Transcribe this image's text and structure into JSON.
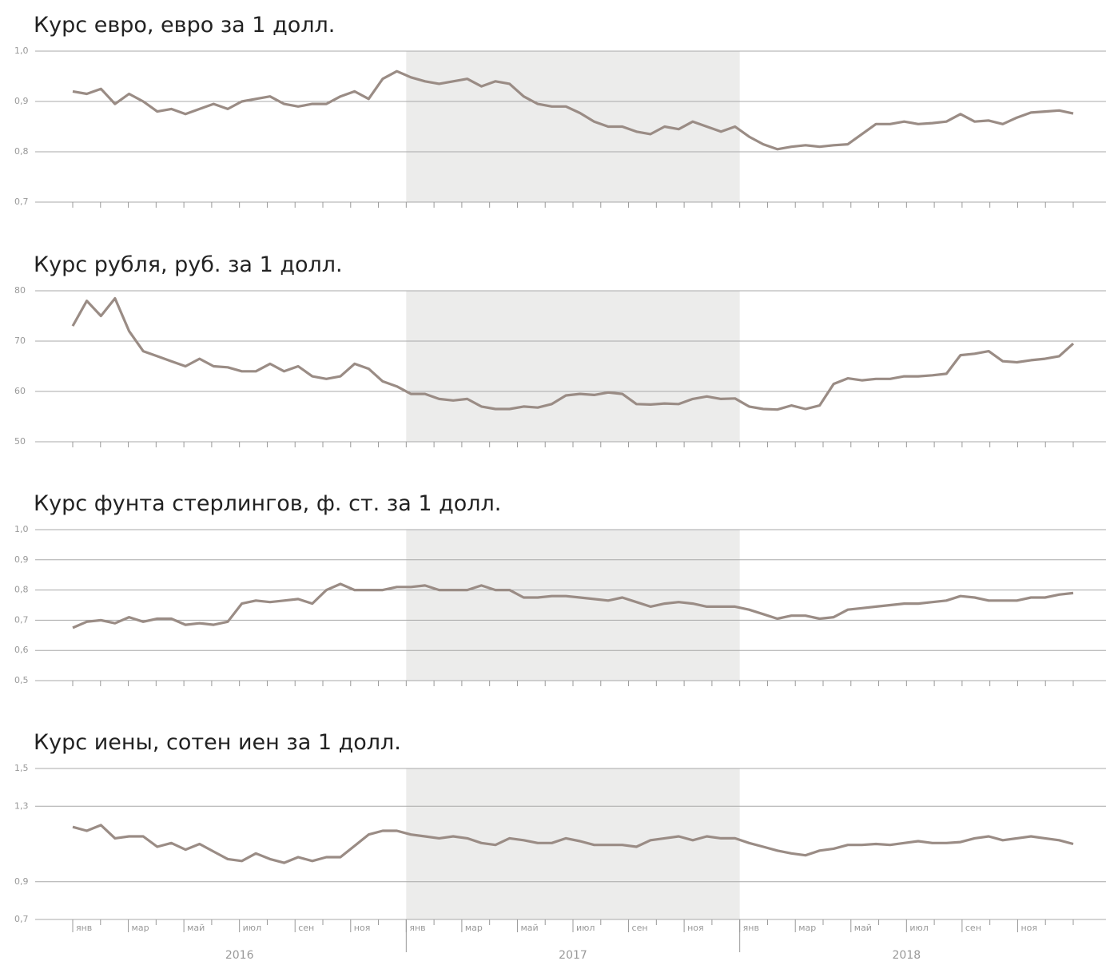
{
  "x_axis": {
    "months": [
      "янв",
      null,
      "мар",
      null,
      "май",
      null,
      "июл",
      null,
      "сен",
      null,
      "ноя",
      null,
      "янв",
      null,
      "мар",
      null,
      "май",
      null,
      "июл",
      null,
      "сен",
      null,
      "ноя",
      null,
      "янв",
      null,
      "мар",
      null,
      "май",
      null,
      "июл",
      null,
      "сен",
      null,
      "ноя",
      null
    ],
    "years": [
      "2016",
      "2017",
      "2018"
    ]
  },
  "chart_data": [
    {
      "type": "line",
      "title": "Курс евро, евро за 1 долл.",
      "ylim": [
        0.7,
        1.0
      ],
      "yticks": [
        {
          "value": 1.0,
          "label": "1,0"
        },
        {
          "value": 0.9,
          "label": "0,9"
        },
        {
          "value": 0.8,
          "label": "0,8"
        },
        {
          "value": 0.7,
          "label": "0,7"
        }
      ],
      "grid": true,
      "series": [
        {
          "color": "#9a8c85",
          "values": [
            0.92,
            0.915,
            0.925,
            0.895,
            0.915,
            0.9,
            0.88,
            0.885,
            0.875,
            0.885,
            0.895,
            0.885,
            0.9,
            0.905,
            0.91,
            0.895,
            0.89,
            0.895,
            0.895,
            0.91,
            0.92,
            0.905,
            0.945,
            0.96,
            0.948,
            0.94,
            0.935,
            0.94,
            0.945,
            0.93,
            0.94,
            0.935,
            0.91,
            0.895,
            0.89,
            0.89,
            0.877,
            0.86,
            0.85,
            0.85,
            0.84,
            0.835,
            0.85,
            0.845,
            0.86,
            0.85,
            0.84,
            0.85,
            0.83,
            0.815,
            0.805,
            0.81,
            0.813,
            0.81,
            0.813,
            0.815,
            0.835,
            0.855,
            0.855,
            0.86,
            0.855,
            0.857,
            0.86,
            0.875,
            0.86,
            0.862,
            0.855,
            0.868,
            0.878,
            0.88,
            0.882,
            0.876
          ]
        }
      ]
    },
    {
      "type": "line",
      "title": "Курс рубля, руб. за 1 долл.",
      "ylim": [
        50,
        80
      ],
      "yticks": [
        80,
        70,
        60,
        50
      ],
      "grid": true,
      "series": [
        {
          "color": "#9a8c85",
          "values": [
            73,
            78,
            75,
            78.5,
            72,
            68,
            67,
            66,
            65,
            66.5,
            65,
            64.8,
            64,
            64,
            65.5,
            64,
            65,
            63,
            62.5,
            63,
            65.5,
            64.5,
            62,
            61,
            59.5,
            59.5,
            58.5,
            58.2,
            58.5,
            57,
            56.5,
            56.5,
            57,
            56.8,
            57.5,
            59.2,
            59.5,
            59.3,
            59.8,
            59.5,
            57.5,
            57.4,
            57.6,
            57.5,
            58.5,
            59,
            58.5,
            58.6,
            57,
            56.5,
            56.4,
            57.2,
            56.5,
            57.2,
            61.5,
            62.6,
            62.2,
            62.5,
            62.5,
            63,
            63,
            63.2,
            63.5,
            67.2,
            67.5,
            68,
            66,
            65.8,
            66.2,
            66.5,
            67,
            69.5
          ]
        }
      ]
    },
    {
      "type": "line",
      "title": "Курс фунта стерлингов, ф. ст. за 1 долл.",
      "ylim": [
        0.5,
        1.0
      ],
      "yticks": [
        {
          "value": 1.0,
          "label": "1,0"
        },
        {
          "value": 0.9,
          "label": "0,9"
        },
        {
          "value": 0.8,
          "label": "0,8"
        },
        {
          "value": 0.7,
          "label": "0,7"
        },
        {
          "value": 0.6,
          "label": "0,6"
        },
        {
          "value": 0.5,
          "label": "0,5"
        }
      ],
      "grid": true,
      "series": [
        {
          "color": "#9a8c85",
          "values": [
            0.675,
            0.695,
            0.7,
            0.69,
            0.71,
            0.695,
            0.705,
            0.705,
            0.685,
            0.69,
            0.685,
            0.695,
            0.755,
            0.765,
            0.76,
            0.765,
            0.77,
            0.755,
            0.8,
            0.82,
            0.8,
            0.8,
            0.8,
            0.81,
            0.81,
            0.815,
            0.8,
            0.8,
            0.8,
            0.815,
            0.8,
            0.8,
            0.775,
            0.775,
            0.78,
            0.78,
            0.775,
            0.77,
            0.765,
            0.775,
            0.76,
            0.745,
            0.755,
            0.76,
            0.755,
            0.745,
            0.745,
            0.745,
            0.735,
            0.72,
            0.705,
            0.715,
            0.715,
            0.705,
            0.71,
            0.735,
            0.74,
            0.745,
            0.75,
            0.755,
            0.755,
            0.76,
            0.765,
            0.78,
            0.775,
            0.765,
            0.765,
            0.765,
            0.775,
            0.775,
            0.785,
            0.79
          ]
        }
      ]
    },
    {
      "type": "line",
      "title": "Курс иены, сотен иен за 1 долл.",
      "ylim": [
        0.7,
        1.5
      ],
      "yticks": [
        {
          "value": 1.5,
          "label": "1,5"
        },
        {
          "value": 1.3,
          "label": "1,3"
        },
        {
          "value": 0.9,
          "label": "0,9"
        },
        {
          "value": 0.7,
          "label": "0,7"
        }
      ],
      "grid": true,
      "series": [
        {
          "color": "#9a8c85",
          "values": [
            1.19,
            1.17,
            1.2,
            1.13,
            1.14,
            1.14,
            1.085,
            1.105,
            1.07,
            1.1,
            1.06,
            1.02,
            1.01,
            1.05,
            1.02,
            1.0,
            1.03,
            1.01,
            1.03,
            1.03,
            1.09,
            1.15,
            1.17,
            1.17,
            1.15,
            1.14,
            1.13,
            1.14,
            1.13,
            1.105,
            1.095,
            1.13,
            1.12,
            1.105,
            1.105,
            1.13,
            1.115,
            1.095,
            1.095,
            1.095,
            1.085,
            1.12,
            1.13,
            1.14,
            1.12,
            1.14,
            1.13,
            1.13,
            1.105,
            1.085,
            1.065,
            1.05,
            1.04,
            1.065,
            1.075,
            1.095,
            1.095,
            1.1,
            1.095,
            1.105,
            1.115,
            1.105,
            1.105,
            1.11,
            1.13,
            1.14,
            1.12,
            1.13,
            1.14,
            1.13,
            1.12,
            1.1
          ]
        }
      ]
    }
  ]
}
